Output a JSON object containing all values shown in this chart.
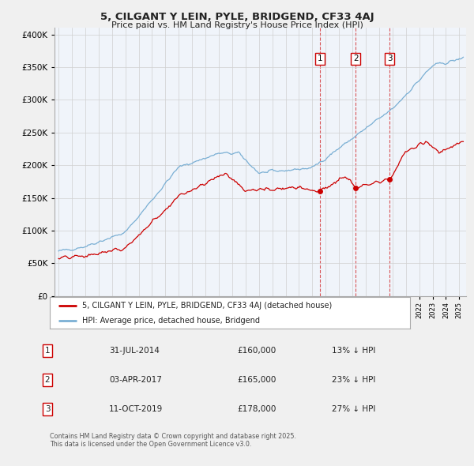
{
  "title": "5, CILGANT Y LEIN, PYLE, BRIDGEND, CF33 4AJ",
  "subtitle": "Price paid vs. HM Land Registry's House Price Index (HPI)",
  "legend_red": "5, CILGANT Y LEIN, PYLE, BRIDGEND, CF33 4AJ (detached house)",
  "legend_blue": "HPI: Average price, detached house, Bridgend",
  "transactions": [
    {
      "num": 1,
      "date": "31-JUL-2014",
      "price": "£160,000",
      "hpi": "13% ↓ HPI",
      "year": 2014.58,
      "value": 160000
    },
    {
      "num": 2,
      "date": "03-APR-2017",
      "price": "£165,000",
      "hpi": "23% ↓ HPI",
      "year": 2017.25,
      "value": 165000
    },
    {
      "num": 3,
      "date": "11-OCT-2019",
      "price": "£178,000",
      "hpi": "27% ↓ HPI",
      "year": 2019.78,
      "value": 178000
    }
  ],
  "footer": "Contains HM Land Registry data © Crown copyright and database right 2025.\nThis data is licensed under the Open Government Licence v3.0.",
  "red_color": "#cc0000",
  "blue_color": "#7aafd4",
  "vline_color": "#cc0000",
  "fig_bg": "#f0f0f0",
  "plot_bg": "#f0f4fa",
  "grid_color": "#d0d0d0",
  "ylim_max": 400000,
  "xlim_start": 1994.7,
  "xlim_end": 2025.5
}
